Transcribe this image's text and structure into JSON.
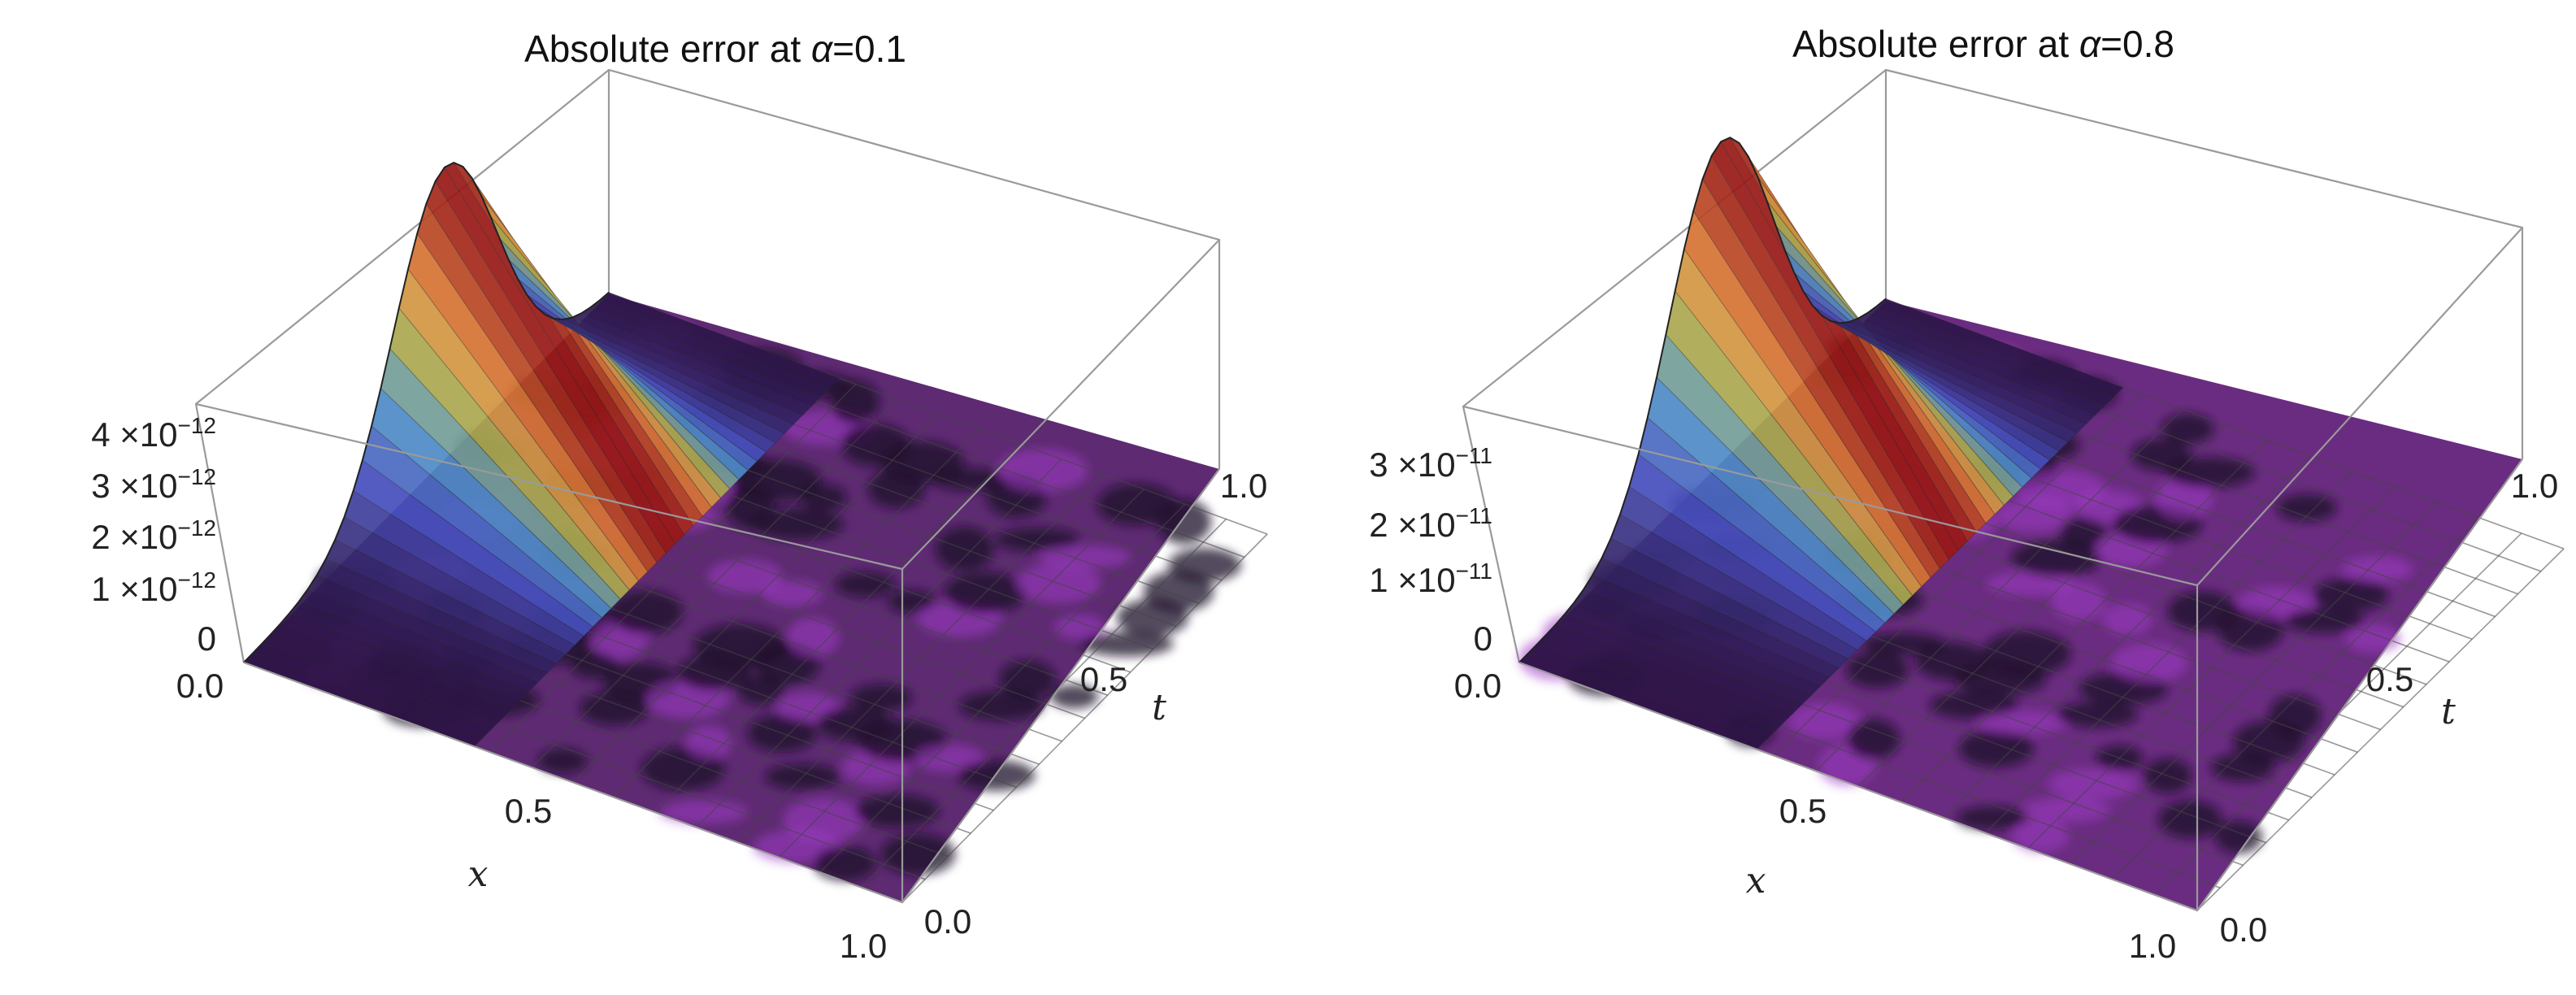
{
  "chart_data": [
    {
      "type": "surface3d",
      "title": "Absolute error at α=0.1",
      "title_prefix": "Absolute error at ",
      "title_param_symbol": "α",
      "title_param_value": "=0.1",
      "x_label": "x",
      "t_label": "t",
      "x_range": [
        0,
        1
      ],
      "t_range": [
        0,
        1
      ],
      "z_range": [
        0,
        4.6e-12
      ],
      "x_ticks": [
        "0.0",
        "0.5",
        "1.0"
      ],
      "t_ticks": [
        "0.0",
        "0.5",
        "1.0"
      ],
      "z_ticks": [
        {
          "value": 4e-12,
          "coef": "4 ×10",
          "exp": "−12"
        },
        {
          "value": 3e-12,
          "coef": "3 ×10",
          "exp": "−12"
        },
        {
          "value": 2e-12,
          "coef": "2 ×10",
          "exp": "−12"
        },
        {
          "value": 1e-12,
          "coef": "1 ×10",
          "exp": "−12"
        },
        {
          "value": 0,
          "coef": "0",
          "exp": ""
        }
      ],
      "peak": {
        "x": 0.06,
        "t": 0.55,
        "z": 4.6e-12
      },
      "color_scheme": "purple-blue-green-orange-red (by height)",
      "grid": true
    },
    {
      "type": "surface3d",
      "title": "Absolute error at α=0.8",
      "title_prefix": "Absolute error at ",
      "title_param_symbol": "α",
      "title_param_value": "=0.8",
      "x_label": "x",
      "t_label": "t",
      "x_range": [
        0,
        1
      ],
      "t_range": [
        0,
        1
      ],
      "z_range": [
        0,
        4e-11
      ],
      "x_ticks": [
        "0.0",
        "0.5",
        "1.0"
      ],
      "t_ticks": [
        "0.0",
        "0.5",
        "1.0"
      ],
      "z_ticks": [
        {
          "value": 3e-11,
          "coef": "3 ×10",
          "exp": "−11"
        },
        {
          "value": 2e-11,
          "coef": "2 ×10",
          "exp": "−11"
        },
        {
          "value": 1e-11,
          "coef": "1 ×10",
          "exp": "−11"
        },
        {
          "value": 0,
          "coef": "0",
          "exp": ""
        }
      ],
      "peak": {
        "x": 0.06,
        "t": 0.55,
        "z": 4e-11
      },
      "color_scheme": "purple-blue-green-orange-red (by height)",
      "grid": true
    }
  ]
}
